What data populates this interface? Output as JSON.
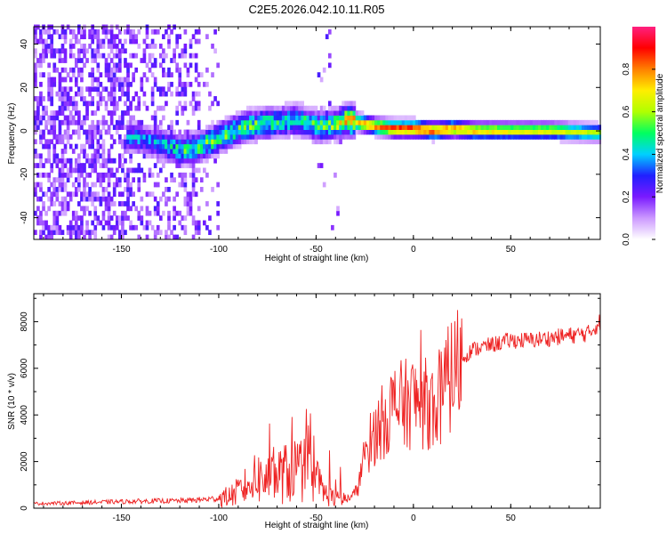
{
  "title": "C2E5.2026.042.10.11.R05",
  "chart_data": [
    {
      "type": "heatmap",
      "xlabel": "Height of straight line (km)",
      "ylabel": "Frequency (Hz)",
      "xlim": [
        -195,
        96
      ],
      "ylim": [
        -50,
        48
      ],
      "xticks": [
        -150,
        -100,
        -50,
        0,
        50
      ],
      "yticks": [
        -40,
        -20,
        0,
        20,
        40
      ],
      "colorbar": {
        "label": "Normalized spectral amplitude",
        "range": [
          0,
          1
        ],
        "ticks": [
          0.0,
          0.2,
          0.4,
          0.6,
          0.8
        ],
        "colors": [
          "#ffffff",
          "#cc99ff",
          "#7a1aff",
          "#2020ff",
          "#00d0ff",
          "#00ff60",
          "#b0ff00",
          "#ffee00",
          "#ff8000",
          "#ff0000",
          "#ff2080"
        ]
      },
      "ridge": {
        "x": [
          -145,
          -135,
          -120,
          -110,
          -100,
          -90,
          -80,
          -70,
          -60,
          -50,
          -40,
          -35,
          -30,
          -20,
          -10,
          0,
          10,
          20,
          30,
          50,
          70,
          96
        ],
        "freq": [
          -4,
          -6,
          -10,
          -8,
          -4,
          0,
          2,
          3,
          4,
          1,
          2,
          4,
          3,
          1,
          0,
          0,
          -1,
          0,
          -1,
          -1,
          -1,
          -2
        ],
        "amplitude": [
          0.35,
          0.35,
          0.45,
          0.5,
          0.5,
          0.5,
          0.5,
          0.45,
          0.45,
          0.5,
          0.55,
          0.7,
          0.75,
          0.8,
          0.9,
          0.9,
          0.85,
          0.8,
          0.75,
          0.7,
          0.7,
          0.6
        ]
      }
    },
    {
      "type": "line",
      "xlabel": "Height of straight line (km)",
      "ylabel": "SNR (10 * v/v)",
      "xlim": [
        -195,
        96
      ],
      "ylim": [
        0,
        9200
      ],
      "xticks": [
        -150,
        -100,
        -50,
        0,
        50
      ],
      "yticks": [
        0,
        2000,
        4000,
        6000,
        8000
      ],
      "series": [
        {
          "name": "SNR",
          "color": "#ee2222",
          "x": [
            -195,
            -180,
            -160,
            -140,
            -120,
            -110,
            -100,
            -95,
            -90,
            -85,
            -80,
            -75,
            -70,
            -65,
            -60,
            -55,
            -50,
            -45,
            -40,
            -35,
            -30,
            -27,
            -25,
            -20,
            -15,
            -10,
            -5,
            0,
            5,
            10,
            15,
            20,
            25,
            30,
            40,
            50,
            60,
            70,
            80,
            90,
            96
          ],
          "y": [
            200,
            220,
            260,
            300,
            320,
            360,
            420,
            500,
            700,
            1000,
            1300,
            1200,
            1400,
            1500,
            1700,
            1600,
            1200,
            600,
            400,
            350,
            600,
            1400,
            2400,
            3200,
            3800,
            4400,
            4400,
            4600,
            4500,
            4400,
            4900,
            5800,
            6400,
            6800,
            7000,
            7200,
            7200,
            7300,
            7400,
            7500,
            8000
          ]
        }
      ]
    }
  ]
}
